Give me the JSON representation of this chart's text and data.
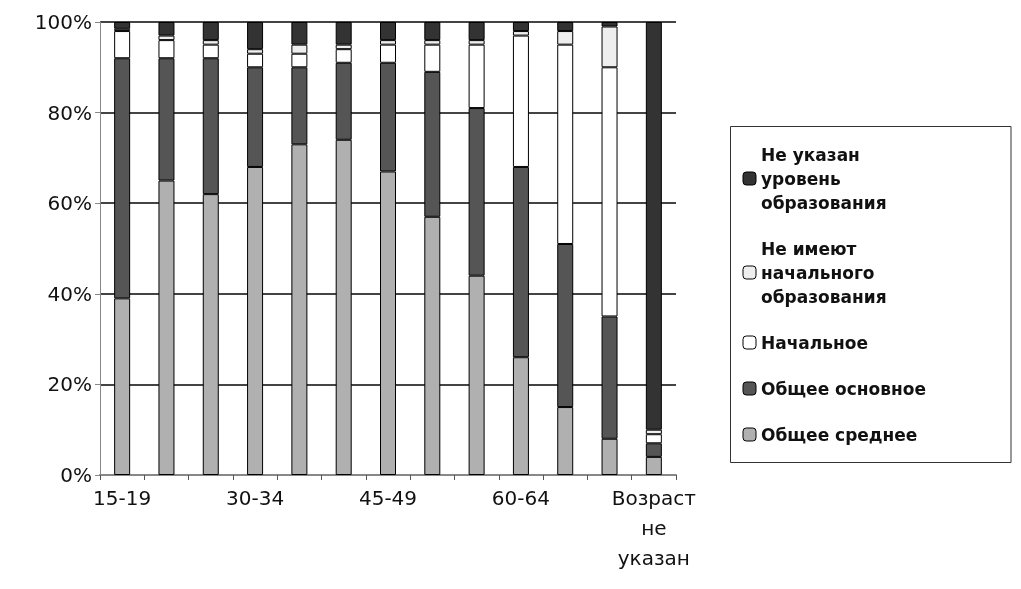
{
  "chart_data": {
    "type": "bar",
    "stacked": true,
    "categories": [
      "15-19",
      null,
      null,
      "30-34",
      null,
      null,
      "45-49",
      null,
      null,
      "60-64",
      null,
      null,
      "Возраст не указан"
    ],
    "series": [
      {
        "name": "Общее среднее",
        "color": "#b0b0b0",
        "values": [
          39,
          65,
          62,
          68,
          73,
          74,
          67,
          57,
          44,
          26,
          15,
          8,
          4
        ]
      },
      {
        "name": "Общее основное",
        "color": "#555555",
        "values": [
          53,
          27,
          30,
          22,
          17,
          17,
          24,
          32,
          37,
          42,
          36,
          27,
          3
        ]
      },
      {
        "name": "Начальное",
        "color": "#ffffff",
        "values": [
          6,
          4,
          3,
          3,
          3,
          3,
          4,
          6,
          14,
          29,
          44,
          55,
          2
        ]
      },
      {
        "name": "Не имеют начального образования",
        "color": "#eeeeee",
        "values": [
          0.5,
          1,
          1,
          1,
          2,
          1,
          1,
          1,
          1,
          1,
          3,
          9,
          1
        ]
      },
      {
        "name": "Не указан уровень образования",
        "color": "#333333",
        "values": [
          1.5,
          3,
          4,
          6,
          5,
          5,
          4,
          4,
          4,
          2,
          2,
          1,
          90
        ]
      }
    ],
    "ylim": [
      0,
      100
    ],
    "yticks": [
      {
        "value": 0,
        "label": "0%"
      },
      {
        "value": 20,
        "label": "20%"
      },
      {
        "value": 40,
        "label": "40%"
      },
      {
        "value": 60,
        "label": "60%"
      },
      {
        "value": 80,
        "label": "80%"
      },
      {
        "value": 100,
        "label": "100%"
      }
    ],
    "grid": "y",
    "legend": "right"
  }
}
